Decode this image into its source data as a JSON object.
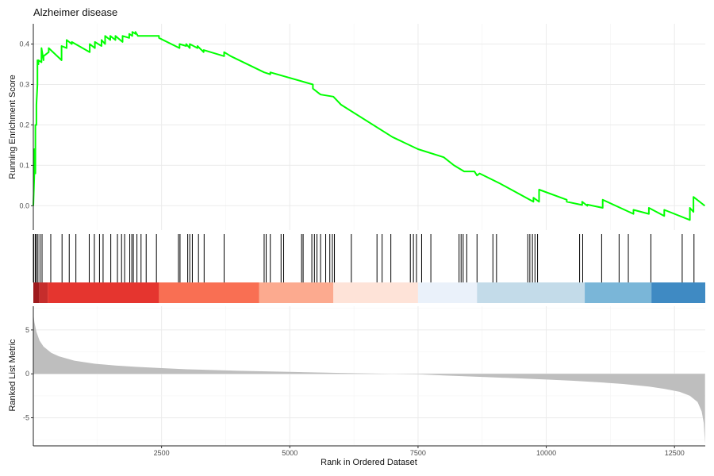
{
  "chart_data": {
    "type": "line",
    "title": "Alzheimer disease",
    "xlabel": "Rank in Ordered Dataset",
    "xlim": [
      0,
      13100
    ],
    "x_ticks": [
      2500,
      5000,
      7500,
      10000,
      12500
    ],
    "panels": {
      "running_score": {
        "ylabel": "Running Enrichment Score",
        "ylim": [
          -0.06,
          0.45
        ],
        "y_ticks": [
          0.0,
          0.1,
          0.2,
          0.3,
          0.4
        ],
        "line_color": "#00ff00",
        "series": [
          {
            "x": [
              0,
              20,
              20,
              40,
              40,
              60,
              60,
              80,
              80,
              100,
              100,
              160,
              160,
              200,
              200,
              300,
              300,
              550,
              550,
              650,
              650,
              750,
              750,
              1100,
              1100,
              1200,
              1200,
              1330,
              1330,
              1400,
              1400,
              1500,
              1500,
              1600,
              1600,
              1740,
              1740,
              1870,
              1870,
              1930,
              1930,
              1990,
              1990,
              2040,
              2040,
              2450,
              2450,
              2850,
              2850,
              2980,
              2980,
              3050,
              3050,
              3200,
              3200,
              3320,
              3320,
              3720,
              3720,
              3850,
              3850,
              4500,
              4500,
              4620,
              4620,
              5450,
              5450,
              5550,
              5600,
              5850,
              6000,
              7000,
              7500,
              8000,
              8200,
              8400,
              8600,
              8650,
              8700,
              9100,
              9100,
              9750,
              9750,
              9860,
              9860,
              10400,
              10400,
              10700,
              10700,
              10800,
              10800,
              11100,
              11100,
              11700,
              11700,
              12000,
              12000,
              12300,
              12300,
              12800,
              12800,
              12870,
              12870,
              13090
            ],
            "y": [
              0.0,
              0.08,
              0.14,
              0.08,
              0.2,
              0.2,
              0.25,
              0.3,
              0.36,
              0.35,
              0.36,
              0.355,
              0.39,
              0.36,
              0.37,
              0.38,
              0.39,
              0.36,
              0.395,
              0.39,
              0.41,
              0.4,
              0.405,
              0.38,
              0.4,
              0.39,
              0.405,
              0.395,
              0.41,
              0.4,
              0.42,
              0.41,
              0.42,
              0.41,
              0.42,
              0.405,
              0.42,
              0.415,
              0.425,
              0.42,
              0.43,
              0.425,
              0.43,
              0.42,
              0.42,
              0.42,
              0.415,
              0.39,
              0.4,
              0.395,
              0.4,
              0.39,
              0.4,
              0.39,
              0.395,
              0.38,
              0.385,
              0.37,
              0.38,
              0.37,
              0.37,
              0.33,
              0.33,
              0.325,
              0.33,
              0.3,
              0.29,
              0.28,
              0.275,
              0.27,
              0.25,
              0.17,
              0.14,
              0.12,
              0.1,
              0.085,
              0.085,
              0.075,
              0.08,
              0.055,
              0.055,
              0.01,
              0.02,
              0.01,
              0.04,
              0.015,
              0.01,
              0.002,
              0.01,
              0.0,
              0.003,
              -0.005,
              0.015,
              -0.02,
              -0.01,
              -0.02,
              -0.005,
              -0.025,
              -0.01,
              -0.035,
              -0.005,
              -0.015,
              0.022,
              0.0
            ]
          }
        ]
      },
      "hits": {
        "positions": [
          10,
          40,
          60,
          90,
          130,
          170,
          340,
          560,
          700,
          830,
          1090,
          1190,
          1290,
          1360,
          1510,
          1640,
          1720,
          1780,
          1880,
          1920,
          1950,
          2020,
          2100,
          2200,
          2400,
          2830,
          2860,
          3010,
          3050,
          3100,
          3220,
          3330,
          3720,
          4500,
          4540,
          4620,
          4830,
          4880,
          5230,
          5260,
          5430,
          5480,
          5530,
          5600,
          5700,
          5780,
          5830,
          5870,
          6200,
          6700,
          6800,
          6970,
          7350,
          7410,
          7470,
          7570,
          7750,
          8300,
          8340,
          8380,
          8450,
          8650,
          8960,
          9030,
          9640,
          9680,
          9730,
          9780,
          9830,
          10650,
          10710,
          11080,
          11420,
          11600,
          12040,
          12650,
          12880
        ]
      },
      "gradient_bar": {
        "segments": [
          {
            "from": 0,
            "to": 120,
            "color": "#9e1a1d"
          },
          {
            "from": 120,
            "to": 280,
            "color": "#c62d2c"
          },
          {
            "from": 280,
            "to": 2450,
            "color": "#e5352f"
          },
          {
            "from": 2450,
            "to": 4400,
            "color": "#f96f53"
          },
          {
            "from": 4400,
            "to": 5850,
            "color": "#fcaa8f"
          },
          {
            "from": 5850,
            "to": 7500,
            "color": "#fee3d8"
          },
          {
            "from": 7500,
            "to": 8650,
            "color": "#eaf1fa"
          },
          {
            "from": 8650,
            "to": 10750,
            "color": "#c3dbe9"
          },
          {
            "from": 10750,
            "to": 12050,
            "color": "#7ab6d8"
          },
          {
            "from": 12050,
            "to": 13100,
            "color": "#3f8ac3"
          }
        ]
      },
      "ranked_metric": {
        "ylabel": "Ranked List Metric",
        "ylim": [
          -8.2,
          7.7
        ],
        "y_ticks": [
          -5,
          0,
          5
        ],
        "fill_color": "#bebebe",
        "curve": {
          "x": [
            0,
            20,
            60,
            120,
            200,
            350,
            500,
            800,
            1200,
            1600,
            2000,
            2500,
            3000,
            4000,
            5000,
            6000,
            7000,
            7500,
            8000,
            9000,
            10000,
            10500,
            11000,
            11500,
            12000,
            12300,
            12600,
            12800,
            12950,
            13030,
            13070,
            13095
          ],
          "y": [
            6.9,
            5.9,
            4.8,
            3.8,
            3.1,
            2.4,
            2.0,
            1.5,
            1.15,
            0.95,
            0.8,
            0.65,
            0.52,
            0.35,
            0.22,
            0.1,
            0.0,
            -0.05,
            -0.18,
            -0.4,
            -0.65,
            -0.78,
            -0.95,
            -1.15,
            -1.45,
            -1.7,
            -2.05,
            -2.5,
            -3.2,
            -4.3,
            -5.6,
            -8.0
          ]
        }
      }
    }
  }
}
